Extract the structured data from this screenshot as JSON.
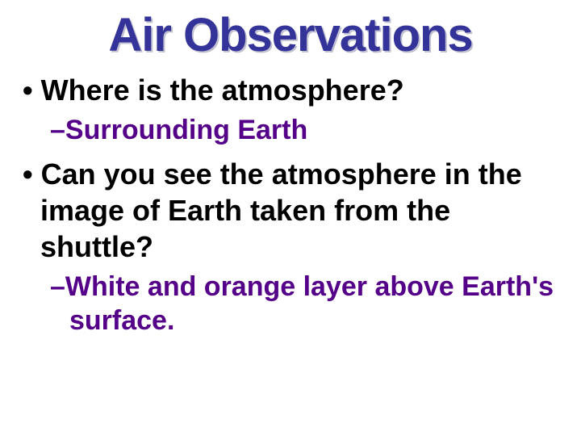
{
  "slide": {
    "title": "Air Observations",
    "items": [
      {
        "level": 1,
        "text": "Where is the atmosphere?"
      },
      {
        "level": 2,
        "text": "Surrounding Earth"
      },
      {
        "level": 1,
        "text": "Can you see the atmosphere in the image of Earth taken from the shuttle?"
      },
      {
        "level": 2,
        "text": "White and orange layer above Earth's surface."
      }
    ]
  },
  "styling": {
    "title_color": "#333399",
    "title_shadow": "#c0c0d0",
    "bullet1_color": "#000000",
    "bullet2_color": "#550088",
    "background_color": "#ffffff",
    "title_fontsize": 58,
    "bullet1_fontsize": 36,
    "bullet2_fontsize": 34
  }
}
